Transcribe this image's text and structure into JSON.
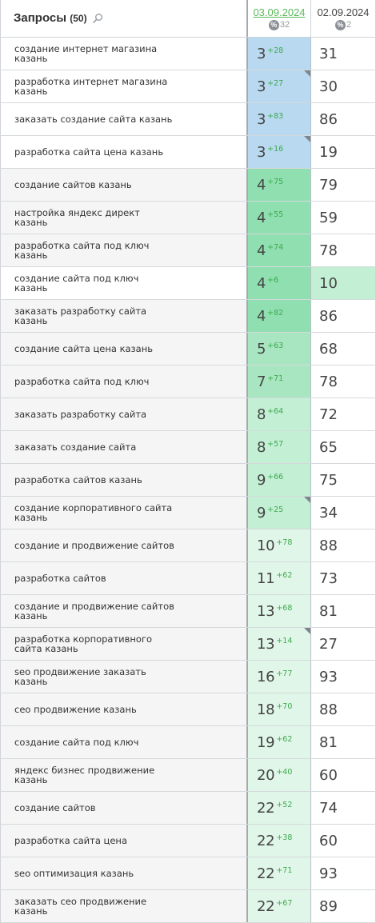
{
  "header": {
    "title": "Запросы",
    "count": "(50)",
    "col1": {
      "date": "03.09.2024",
      "sub": "32"
    },
    "col2": {
      "date": "02.09.2024",
      "sub": "2"
    },
    "percent_icon": "%"
  },
  "level_colors": {
    "blue": "#b8d9f0",
    "g4": "#8fdfb0",
    "g3": "#a7e6c0",
    "g2": "#c3efd4",
    "g1": "#e0f6e8",
    "delta_green": "#3ea94e"
  },
  "rows": [
    {
      "query": "создание интернет магазина казань",
      "pos": "3",
      "delta": "+28",
      "prev": "31",
      "level": "blue",
      "marker": false,
      "prev_highlight": false
    },
    {
      "query": "разработка интернет магазина казань",
      "pos": "3",
      "delta": "+27",
      "prev": "30",
      "level": "blue",
      "marker": true,
      "prev_highlight": false
    },
    {
      "query": "заказать создание сайта казань",
      "pos": "3",
      "delta": "+83",
      "prev": "86",
      "level": "blue",
      "marker": false,
      "prev_highlight": false
    },
    {
      "query": "разработка сайта цена казань",
      "pos": "3",
      "delta": "+16",
      "prev": "19",
      "level": "blue",
      "marker": true,
      "prev_highlight": false
    },
    {
      "query": "создание сайтов казань",
      "pos": "4",
      "delta": "+75",
      "prev": "79",
      "level": "g4",
      "marker": false,
      "prev_highlight": false
    },
    {
      "query": "настройка яндекс директ казань",
      "pos": "4",
      "delta": "+55",
      "prev": "59",
      "level": "g4",
      "marker": false,
      "prev_highlight": false
    },
    {
      "query": "разработка сайта под ключ казань",
      "pos": "4",
      "delta": "+74",
      "prev": "78",
      "level": "g4",
      "marker": false,
      "prev_highlight": false
    },
    {
      "query": "создание сайта под ключ казань",
      "pos": "4",
      "delta": "+6",
      "prev": "10",
      "level": "g4",
      "marker": false,
      "prev_highlight": true
    },
    {
      "query": "заказать разработку сайта казань",
      "pos": "4",
      "delta": "+82",
      "prev": "86",
      "level": "g4",
      "marker": false,
      "prev_highlight": false
    },
    {
      "query": "создание сайта цена казань",
      "pos": "5",
      "delta": "+63",
      "prev": "68",
      "level": "g3",
      "marker": false,
      "prev_highlight": false
    },
    {
      "query": "разработка сайта под ключ",
      "pos": "7",
      "delta": "+71",
      "prev": "78",
      "level": "g3",
      "marker": false,
      "prev_highlight": false
    },
    {
      "query": "заказать разработку сайта",
      "pos": "8",
      "delta": "+64",
      "prev": "72",
      "level": "g2",
      "marker": false,
      "prev_highlight": false
    },
    {
      "query": "заказать создание сайта",
      "pos": "8",
      "delta": "+57",
      "prev": "65",
      "level": "g2",
      "marker": false,
      "prev_highlight": false
    },
    {
      "query": "разработка сайтов казань",
      "pos": "9",
      "delta": "+66",
      "prev": "75",
      "level": "g2",
      "marker": false,
      "prev_highlight": false
    },
    {
      "query": "создание корпоративного сайта казань",
      "pos": "9",
      "delta": "+25",
      "prev": "34",
      "level": "g2",
      "marker": true,
      "prev_highlight": false
    },
    {
      "query": "создание и продвижение сайтов",
      "pos": "10",
      "delta": "+78",
      "prev": "88",
      "level": "g1",
      "marker": false,
      "prev_highlight": false
    },
    {
      "query": "разработка сайтов",
      "pos": "11",
      "delta": "+62",
      "prev": "73",
      "level": "g1",
      "marker": false,
      "prev_highlight": false
    },
    {
      "query": "создание и продвижение сайтов казань",
      "pos": "13",
      "delta": "+68",
      "prev": "81",
      "level": "g1",
      "marker": false,
      "prev_highlight": false
    },
    {
      "query": "разработка корпоративного сайта казань",
      "pos": "13",
      "delta": "+14",
      "prev": "27",
      "level": "g1",
      "marker": true,
      "prev_highlight": false
    },
    {
      "query": "seo продвижение заказать казань",
      "pos": "16",
      "delta": "+77",
      "prev": "93",
      "level": "g1",
      "marker": false,
      "prev_highlight": false
    },
    {
      "query": "сео продвижение казань",
      "pos": "18",
      "delta": "+70",
      "prev": "88",
      "level": "g1",
      "marker": false,
      "prev_highlight": false
    },
    {
      "query": "создание сайта под ключ",
      "pos": "19",
      "delta": "+62",
      "prev": "81",
      "level": "g1",
      "marker": false,
      "prev_highlight": false
    },
    {
      "query": "яндекс бизнес продвижение казань",
      "pos": "20",
      "delta": "+40",
      "prev": "60",
      "level": "g1",
      "marker": false,
      "prev_highlight": false
    },
    {
      "query": "создание сайтов",
      "pos": "22",
      "delta": "+52",
      "prev": "74",
      "level": "g1",
      "marker": false,
      "prev_highlight": false
    },
    {
      "query": "разработка сайта цена",
      "pos": "22",
      "delta": "+38",
      "prev": "60",
      "level": "g1",
      "marker": false,
      "prev_highlight": false
    },
    {
      "query": "seo оптимизация казань",
      "pos": "22",
      "delta": "+71",
      "prev": "93",
      "level": "g1",
      "marker": false,
      "prev_highlight": false
    },
    {
      "query": "заказать сео продвижение казань",
      "pos": "22",
      "delta": "+67",
      "prev": "89",
      "level": "g1",
      "marker": false,
      "prev_highlight": false
    }
  ]
}
